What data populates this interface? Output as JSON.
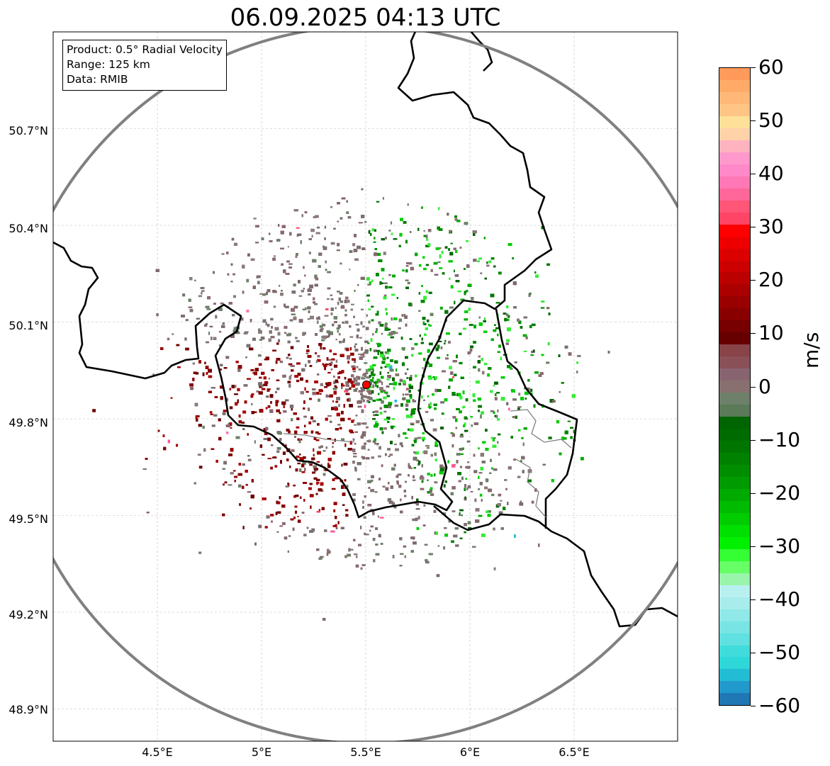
{
  "title": "06.09.2025 04:13 UTC",
  "infobox": {
    "product": "Product: 0.5° Radial Velocity",
    "range": "Range: 125 km",
    "data": "Data: RMIB"
  },
  "map": {
    "lon_range": [
      4.0,
      7.0
    ],
    "lat_range": [
      48.8,
      51.0
    ],
    "lat_ticks": [
      "50.7°N",
      "50.4°N",
      "50.1°N",
      "49.8°N",
      "49.5°N",
      "49.2°N",
      "48.9°N"
    ],
    "lon_ticks": [
      "4.5°E",
      "5°E",
      "5.5°E",
      "6°E",
      "6.5°E"
    ],
    "radar_site": {
      "lon": 5.5,
      "lat": 49.915,
      "marker_color": "#ff0000"
    },
    "range_ring_color": "#808080",
    "gridlines": true
  },
  "colorbar": {
    "label": "m/s",
    "min": -60,
    "max": 60,
    "tick_labels": [
      "60",
      "50",
      "40",
      "30",
      "20",
      "10",
      "0",
      "−10",
      "−20",
      "−30",
      "−40",
      "−50",
      "−60"
    ],
    "colors_top_to_bottom": [
      "#ff9a5a",
      "#ffaa66",
      "#ffb877",
      "#ffc584",
      "#ffe099",
      "#ffd2a8",
      "#ffb3bf",
      "#ff99cc",
      "#ff88c8",
      "#ff77b5",
      "#ff6699",
      "#ff5577",
      "#ff4466",
      "#ff0000",
      "#ee0000",
      "#dd0000",
      "#cc0000",
      "#bb0000",
      "#aa0000",
      "#990000",
      "#880000",
      "#770000",
      "#660000",
      "#884448",
      "#8a5058",
      "#886470",
      "#887070",
      "#6e806a",
      "#5a7a58",
      "#006400",
      "#006b00",
      "#007600",
      "#008200",
      "#008e00",
      "#009b00",
      "#00aa00",
      "#00bb00",
      "#00cc00",
      "#00e000",
      "#00f000",
      "#33ff33",
      "#66ff66",
      "#99f5aa",
      "#b8f0f0",
      "#a8ecec",
      "#90e8e8",
      "#78e4e4",
      "#60e0e0",
      "#40dcdc",
      "#2ed8d8",
      "#22bcd4",
      "#2299cc",
      "#1f77b4"
    ]
  }
}
